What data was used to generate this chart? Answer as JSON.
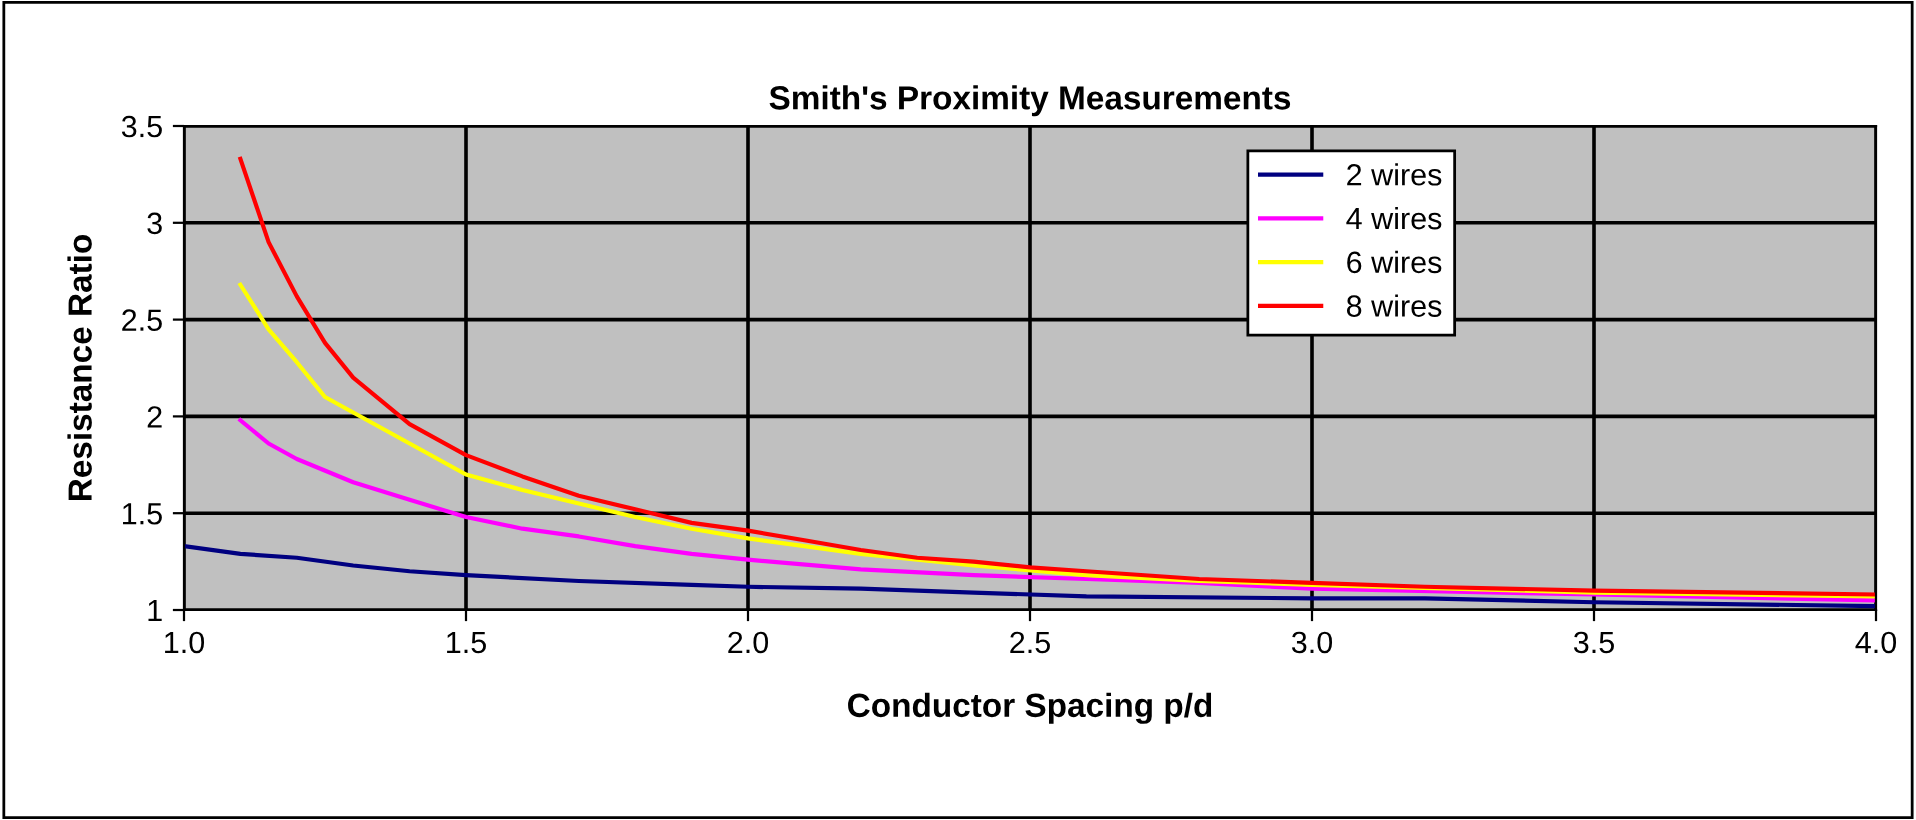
{
  "chart_data": {
    "type": "line",
    "title": "Smith's Proximity Measurements",
    "xlabel": "Conductor Spacing p/d",
    "ylabel": "Resistance Ratio",
    "xlim": [
      1.0,
      4.0
    ],
    "xticks": [
      {
        "value": 1,
        "label": "1.0"
      },
      1.5,
      {
        "value": 2,
        "label": "2.0"
      },
      2.5,
      {
        "value": 3,
        "label": "3.0"
      },
      3.5,
      {
        "value": 4,
        "label": "4.0"
      }
    ],
    "ylim": [
      1,
      3.5
    ],
    "yticks": [
      1,
      1.5,
      2,
      2.5,
      3,
      3.5
    ],
    "grid": true,
    "legend": "top right",
    "marker": "none",
    "line_style": "solid",
    "series": [
      {
        "name": "2 wires",
        "color": "#000080",
        "x": [
          1.0,
          1.1,
          1.2,
          1.3,
          1.4,
          1.5,
          1.7,
          1.9,
          2.0,
          2.2,
          2.4,
          2.6,
          3.0,
          3.2,
          3.5,
          4.0
        ],
        "values": [
          1.33,
          1.29,
          1.27,
          1.23,
          1.2,
          1.18,
          1.15,
          1.13,
          1.12,
          1.11,
          1.09,
          1.07,
          1.06,
          1.06,
          1.04,
          1.02
        ]
      },
      {
        "name": "4 wires",
        "color": "#ff00ff",
        "x": [
          1.1,
          1.15,
          1.2,
          1.3,
          1.4,
          1.5,
          1.6,
          1.7,
          1.8,
          1.9,
          2.0,
          2.2,
          2.4,
          2.6,
          2.8,
          3.0,
          3.5,
          4.0
        ],
        "values": [
          1.98,
          1.86,
          1.78,
          1.66,
          1.57,
          1.48,
          1.42,
          1.38,
          1.33,
          1.29,
          1.26,
          1.21,
          1.18,
          1.16,
          1.14,
          1.11,
          1.08,
          1.05
        ]
      },
      {
        "name": "6 wires",
        "color": "#ffff00",
        "x": [
          1.1,
          1.15,
          1.2,
          1.25,
          1.3,
          1.4,
          1.5,
          1.6,
          1.7,
          1.8,
          1.9,
          2.0,
          2.1,
          2.2,
          2.4,
          2.6,
          2.8,
          3.0,
          3.5,
          4.0
        ],
        "values": [
          2.68,
          2.45,
          2.28,
          2.1,
          2.02,
          1.86,
          1.7,
          1.62,
          1.55,
          1.48,
          1.42,
          1.37,
          1.33,
          1.29,
          1.23,
          1.18,
          1.15,
          1.13,
          1.09,
          1.07
        ]
      },
      {
        "name": "8 wires",
        "color": "#ff0000",
        "x": [
          1.1,
          1.15,
          1.2,
          1.25,
          1.3,
          1.35,
          1.4,
          1.5,
          1.6,
          1.7,
          1.8,
          1.9,
          2.0,
          2.1,
          2.2,
          2.3,
          2.4,
          2.5,
          2.6,
          2.8,
          3.0,
          3.2,
          3.5,
          4.0
        ],
        "values": [
          3.33,
          2.9,
          2.62,
          2.38,
          2.2,
          2.08,
          1.96,
          1.8,
          1.69,
          1.59,
          1.52,
          1.45,
          1.41,
          1.36,
          1.31,
          1.27,
          1.25,
          1.22,
          1.2,
          1.16,
          1.14,
          1.12,
          1.1,
          1.08
        ]
      }
    ]
  }
}
